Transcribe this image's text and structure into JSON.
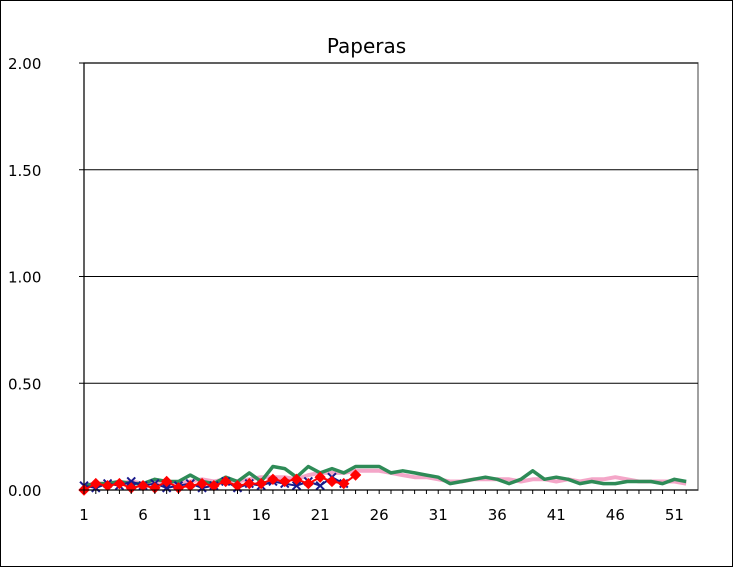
{
  "chart_data": {
    "type": "line",
    "title": "Paperas",
    "xlabel": "",
    "ylabel": "",
    "ylim": [
      0,
      2.0
    ],
    "xlim": [
      1,
      53
    ],
    "y_ticks": [
      "0.00",
      "0.50",
      "1.00",
      "1.50",
      "2.00"
    ],
    "y_tick_values": [
      0,
      0.5,
      1.0,
      1.5,
      2.0
    ],
    "x_ticks": [
      "1",
      "6",
      "11",
      "16",
      "21",
      "26",
      "31",
      "36",
      "41",
      "46",
      "51"
    ],
    "x_tick_values": [
      1,
      6,
      11,
      16,
      21,
      26,
      31,
      36,
      41,
      46,
      51
    ],
    "grid": true,
    "legend": "none",
    "series": [
      {
        "color": "#f4a6c8",
        "marker": "none",
        "x": [
          1,
          2,
          3,
          4,
          5,
          6,
          7,
          8,
          9,
          10,
          11,
          12,
          13,
          14,
          15,
          16,
          17,
          18,
          19,
          20,
          21,
          22,
          23,
          24,
          25,
          26,
          27,
          28,
          29,
          30,
          31,
          32,
          33,
          34,
          35,
          36,
          37,
          38,
          39,
          40,
          41,
          42,
          43,
          44,
          45,
          46,
          47,
          48,
          49,
          50,
          51,
          52
        ],
        "values": [
          0.02,
          0.03,
          0.03,
          0.03,
          0.04,
          0.03,
          0.04,
          0.03,
          0.03,
          0.04,
          0.05,
          0.04,
          0.05,
          0.04,
          0.05,
          0.06,
          0.06,
          0.06,
          0.05,
          0.07,
          0.08,
          0.08,
          0.08,
          0.09,
          0.09,
          0.09,
          0.08,
          0.07,
          0.06,
          0.06,
          0.05,
          0.04,
          0.04,
          0.05,
          0.05,
          0.05,
          0.05,
          0.04,
          0.05,
          0.05,
          0.04,
          0.05,
          0.04,
          0.05,
          0.05,
          0.06,
          0.05,
          0.04,
          0.04,
          0.04,
          0.04,
          0.03
        ]
      },
      {
        "color": "#2e8b57",
        "marker": "none",
        "x": [
          1,
          2,
          3,
          4,
          5,
          6,
          7,
          8,
          9,
          10,
          11,
          12,
          13,
          14,
          15,
          16,
          17,
          18,
          19,
          20,
          21,
          22,
          23,
          24,
          25,
          26,
          27,
          28,
          29,
          30,
          31,
          32,
          33,
          34,
          35,
          36,
          37,
          38,
          39,
          40,
          41,
          42,
          43,
          44,
          45,
          46,
          47,
          48,
          49,
          50,
          51,
          52
        ],
        "values": [
          0.02,
          0.03,
          0.03,
          0.04,
          0.03,
          0.03,
          0.05,
          0.04,
          0.04,
          0.07,
          0.04,
          0.03,
          0.06,
          0.04,
          0.08,
          0.04,
          0.11,
          0.1,
          0.06,
          0.11,
          0.08,
          0.1,
          0.08,
          0.11,
          0.11,
          0.11,
          0.08,
          0.09,
          0.08,
          0.07,
          0.06,
          0.03,
          0.04,
          0.05,
          0.06,
          0.05,
          0.03,
          0.05,
          0.09,
          0.05,
          0.06,
          0.05,
          0.03,
          0.04,
          0.03,
          0.03,
          0.04,
          0.04,
          0.04,
          0.03,
          0.05,
          0.04
        ]
      },
      {
        "color": "#1a1a8c",
        "marker": "x",
        "x": [
          1,
          2,
          3,
          4,
          5,
          6,
          7,
          8,
          9,
          10,
          11,
          12,
          13,
          14,
          15,
          16,
          17,
          18,
          19,
          20,
          21,
          22,
          23
        ],
        "values": [
          0.02,
          0.01,
          0.03,
          0.02,
          0.04,
          0.02,
          0.03,
          0.01,
          0.02,
          0.03,
          0.01,
          0.02,
          0.04,
          0.01,
          0.03,
          0.02,
          0.04,
          0.03,
          0.02,
          0.04,
          0.02,
          0.06,
          0.03
        ]
      },
      {
        "color": "#ff0000",
        "marker": "diamond",
        "x": [
          1,
          2,
          3,
          4,
          5,
          6,
          7,
          8,
          9,
          10,
          11,
          12,
          13,
          14,
          15,
          16,
          17,
          18,
          19,
          20,
          21,
          22,
          23,
          24
        ],
        "values": [
          0.0,
          0.03,
          0.02,
          0.03,
          0.01,
          0.02,
          0.01,
          0.04,
          0.01,
          0.02,
          0.03,
          0.02,
          0.04,
          0.02,
          0.03,
          0.03,
          0.05,
          0.04,
          0.05,
          0.03,
          0.06,
          0.04,
          0.03,
          0.07
        ]
      }
    ]
  }
}
